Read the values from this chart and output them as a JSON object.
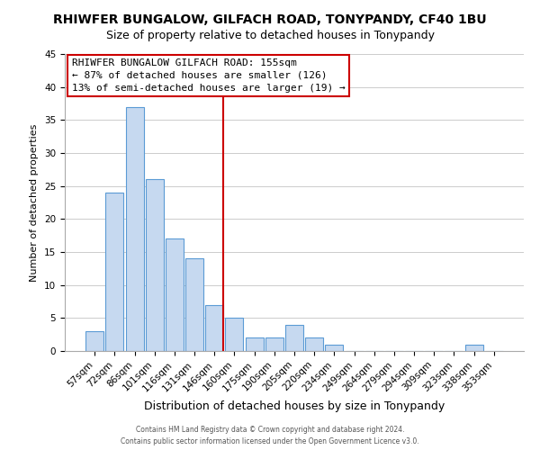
{
  "title": "RHIWFER BUNGALOW, GILFACH ROAD, TONYPANDY, CF40 1BU",
  "subtitle": "Size of property relative to detached houses in Tonypandy",
  "xlabel": "Distribution of detached houses by size in Tonypandy",
  "ylabel": "Number of detached properties",
  "bar_labels": [
    "57sqm",
    "72sqm",
    "86sqm",
    "101sqm",
    "116sqm",
    "131sqm",
    "146sqm",
    "160sqm",
    "175sqm",
    "190sqm",
    "205sqm",
    "220sqm",
    "234sqm",
    "249sqm",
    "264sqm",
    "279sqm",
    "294sqm",
    "309sqm",
    "323sqm",
    "338sqm",
    "353sqm"
  ],
  "bar_values": [
    3,
    24,
    37,
    26,
    17,
    14,
    7,
    5,
    2,
    2,
    4,
    2,
    1,
    0,
    0,
    0,
    0,
    0,
    0,
    1,
    0
  ],
  "bar_color": "#c6d9f0",
  "bar_edge_color": "#5b9bd5",
  "vline_color": "#cc0000",
  "ylim": [
    0,
    45
  ],
  "yticks": [
    0,
    5,
    10,
    15,
    20,
    25,
    30,
    35,
    40,
    45
  ],
  "annotation_title": "RHIWFER BUNGALOW GILFACH ROAD: 155sqm",
  "annotation_line1": "← 87% of detached houses are smaller (126)",
  "annotation_line2": "13% of semi-detached houses are larger (19) →",
  "footer1": "Contains HM Land Registry data © Crown copyright and database right 2024.",
  "footer2": "Contains public sector information licensed under the Open Government Licence v3.0.",
  "background_color": "#ffffff",
  "grid_color": "#cccccc",
  "title_fontsize": 10,
  "subtitle_fontsize": 9,
  "xlabel_fontsize": 9,
  "ylabel_fontsize": 8,
  "tick_fontsize": 7.5,
  "ann_fontsize": 8
}
